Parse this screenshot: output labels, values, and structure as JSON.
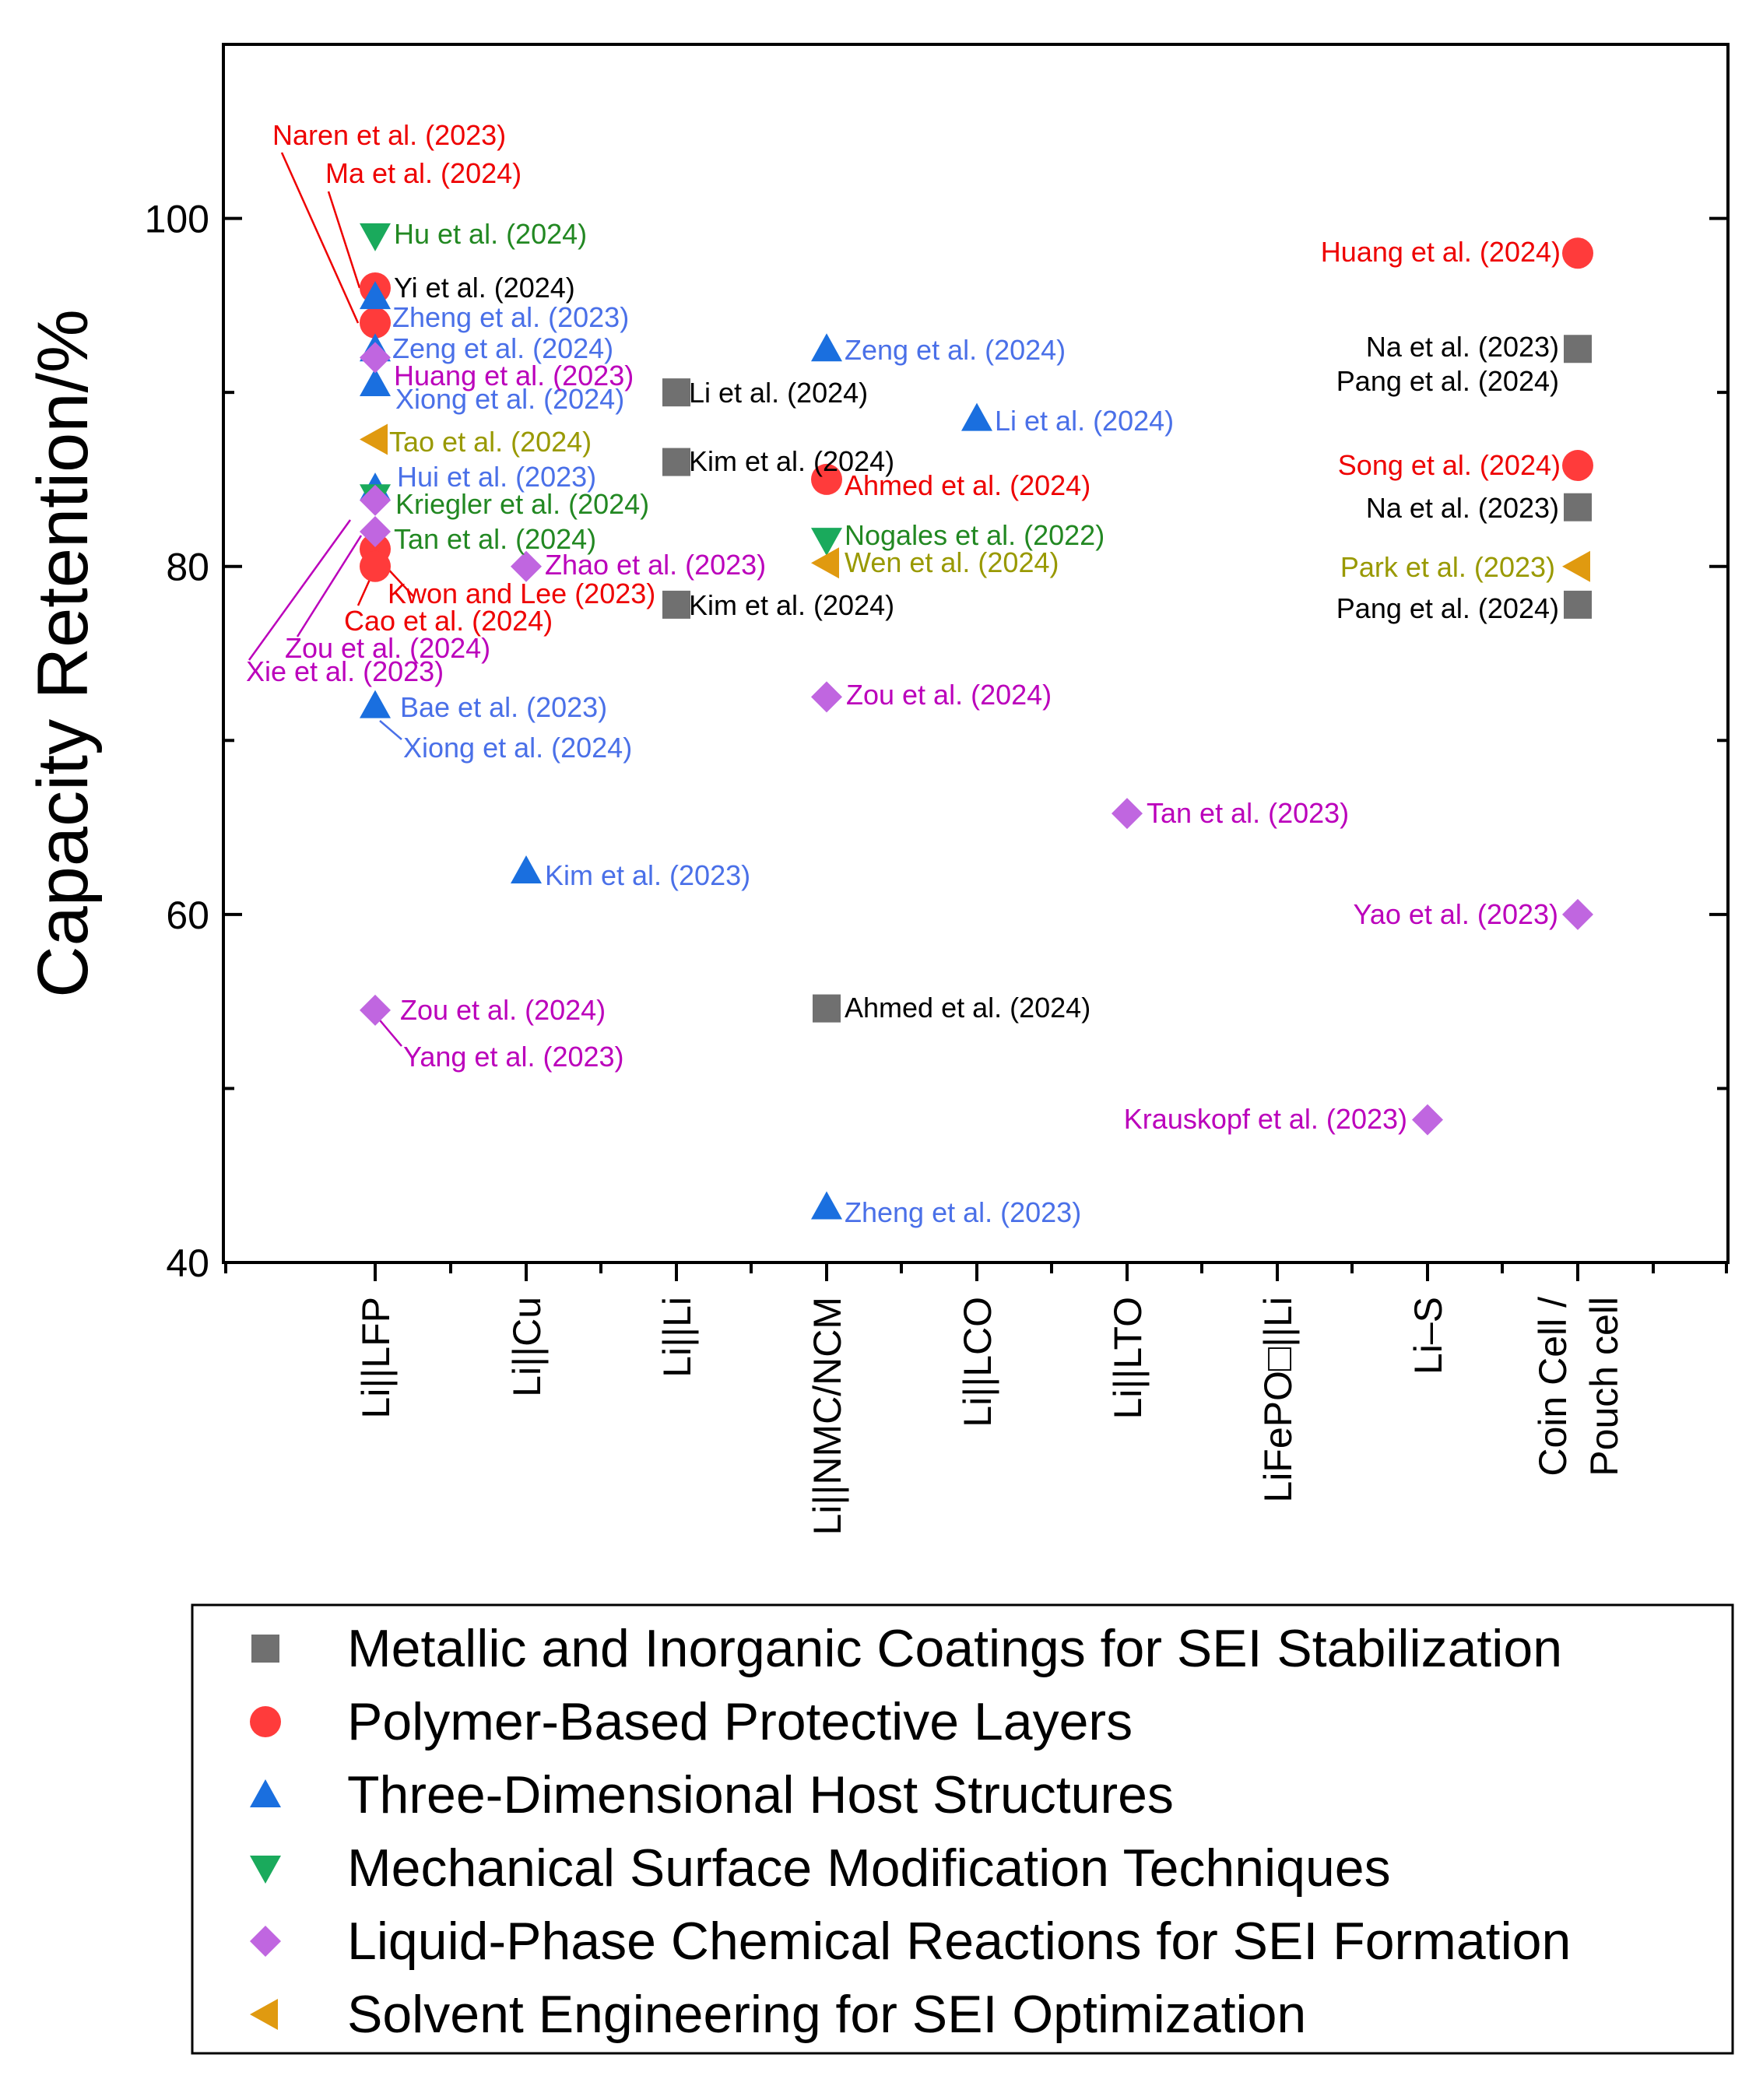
{
  "chart_data": {
    "type": "scatter",
    "title": "",
    "xlabel": "",
    "ylabel": "Capacity Retention/%",
    "ylim": [
      40,
      110
    ],
    "yticks": [
      40,
      60,
      80,
      100
    ],
    "grid": false,
    "categories": [
      "Li||LFP",
      "Li||Cu",
      "Li||Li",
      "Li||NMC/NCM",
      "Li||LCO",
      "Li||LTO",
      "LiFePO□||Li",
      "Li–S",
      "Coin Cell /\nPouch cell"
    ],
    "category_lines": [
      [
        "Li||LFP"
      ],
      [
        "Li||Cu"
      ],
      [
        "Li||Li"
      ],
      [
        "Li||NMC/NCM"
      ],
      [
        "Li||LCO"
      ],
      [
        "Li||LTO"
      ],
      [
        "LiFePO□||Li"
      ],
      [
        "Li–S"
      ],
      [
        "Coin Cell /",
        "Pouch cell"
      ]
    ],
    "legend_position": "bottom",
    "colors": {
      "metallic": "#707070",
      "polymer": "#ff3b3b",
      "host": "#1a6fdf",
      "mechanical": "#1aaa5c",
      "liquid": "#c066e0",
      "solvent": "#e09a10",
      "text_red": "#ee0000",
      "text_blue": "#4a70e8",
      "text_magenta": "#bb00bb",
      "text_green": "#228822",
      "text_olive": "#999900",
      "text_black": "#000000"
    },
    "series": [
      {
        "key": "metallic",
        "name": "Metallic and Inorganic Coatings for SEI Stabilization",
        "marker": "square",
        "points": [
          {
            "x": "Li||Li",
            "y": 90,
            "label": "Li et al. (2024)"
          },
          {
            "x": "Li||Li",
            "y": 86,
            "label": "Kim et al. (2024)"
          },
          {
            "x": "Li||Li",
            "y": 77.8,
            "label": "Kim et al. (2024)"
          },
          {
            "x": "Li||NMC/NCM",
            "y": 54.6,
            "label": "Ahmed et al. (2024)"
          },
          {
            "x": "Coin Cell /\nPouch cell",
            "y": 92.5,
            "label": "Na et al. (2023)"
          },
          {
            "x": "Coin Cell /\nPouch cell",
            "y": 92.5,
            "label": "Pang et al. (2024)"
          },
          {
            "x": "Coin Cell /\nPouch cell",
            "y": 83.4,
            "label": "Na et al. (2023)"
          },
          {
            "x": "Coin Cell /\nPouch cell",
            "y": 77.8,
            "label": "Pang et al. (2024)"
          }
        ]
      },
      {
        "key": "polymer",
        "name": "Polymer-Based Protective Layers",
        "marker": "circle",
        "points": [
          {
            "x": "Li||LFP",
            "y": 96,
            "label": "Naren et al. (2023)"
          },
          {
            "x": "Li||LFP",
            "y": 94,
            "label": "Ma et al. (2024)"
          },
          {
            "x": "Li||LFP",
            "y": 81,
            "label": "Kwon and Lee (2023)"
          },
          {
            "x": "Li||LFP",
            "y": 80,
            "label": "Cao et al. (2024)"
          },
          {
            "x": "Li||NMC/NCM",
            "y": 85,
            "label": "Ahmed et al. (2024)"
          },
          {
            "x": "Coin Cell /\nPouch cell",
            "y": 98,
            "label": "Huang et al. (2024)"
          },
          {
            "x": "Coin Cell /\nPouch cell",
            "y": 85.8,
            "label": "Song et al. (2024)"
          }
        ]
      },
      {
        "key": "host",
        "name": "Three-Dimensional Host Structures",
        "marker": "triangle-up",
        "points": [
          {
            "x": "Li||LFP",
            "y": 95.5,
            "label": "Yi et al. (2024)"
          },
          {
            "x": "Li||LFP",
            "y": 92.5,
            "label": "Zheng et al. (2023)"
          },
          {
            "x": "Li||LFP",
            "y": 90.5,
            "label": "Xiong et al. (2024)"
          },
          {
            "x": "Li||LFP",
            "y": 84.5,
            "label": "Hui et al. (2023)"
          },
          {
            "x": "Li||LFP",
            "y": 72,
            "label": "Bae et al. (2023)"
          },
          {
            "x": "Li||LFP",
            "y": 72,
            "label": "Xiong et al. (2024)"
          },
          {
            "x": "Li||Cu",
            "y": 62.5,
            "label": "Kim et al. (2023)"
          },
          {
            "x": "Li||NMC/NCM",
            "y": 92.5,
            "label": "Zeng et al. (2024)"
          },
          {
            "x": "Li||NMC/NCM",
            "y": 43.2,
            "label": "Zheng et al. (2023)"
          },
          {
            "x": "Li||LCO",
            "y": 88.5,
            "label": "Li et al. (2024)"
          }
        ]
      },
      {
        "key": "mechanical",
        "name": "Mechanical Surface Modification Techniques",
        "marker": "triangle-down",
        "points": [
          {
            "x": "Li||LFP",
            "y": 99,
            "label": "Hu et al. (2024)"
          },
          {
            "x": "Li||LFP",
            "y": 84,
            "label": "Kriegler et al. (2024)"
          },
          {
            "x": "Li||NMC/NCM",
            "y": 81.5,
            "label": "Nogales et al. (2022)"
          }
        ]
      },
      {
        "key": "liquid",
        "name": "Liquid-Phase Chemical Reactions for SEI Formation",
        "marker": "diamond",
        "points": [
          {
            "x": "Li||LFP",
            "y": 92,
            "label": "Zeng et al. (2024)"
          },
          {
            "x": "Li||LFP",
            "y": 92,
            "label": "Huang et al. (2023)"
          },
          {
            "x": "Li||LFP",
            "y": 83.8,
            "label": "Zou et al. (2024)"
          },
          {
            "x": "Li||LFP",
            "y": 82,
            "label": "Tan et al. (2024)"
          },
          {
            "x": "Li||LFP",
            "y": 82,
            "label": "Xie et al. (2023)"
          },
          {
            "x": "Li||LFP",
            "y": 54.5,
            "label": "Zou et al. (2024)"
          },
          {
            "x": "Li||LFP",
            "y": 54.5,
            "label": "Yang et al. (2023)"
          },
          {
            "x": "Li||Cu",
            "y": 80,
            "label": "Zhao et al. (2023)"
          },
          {
            "x": "Li||NMC/NCM",
            "y": 72.5,
            "label": "Zou et al. (2024)"
          },
          {
            "x": "Li||LTO",
            "y": 65.8,
            "label": "Tan et al. (2023)"
          },
          {
            "x": "Li–S",
            "y": 48.2,
            "label": "Krauskopf et al. (2023)"
          },
          {
            "x": "Coin Cell /\nPouch cell",
            "y": 60,
            "label": "Yao et al. (2023)"
          }
        ]
      },
      {
        "key": "solvent",
        "name": "Solvent Engineering for SEI Optimization",
        "marker": "triangle-left",
        "points": [
          {
            "x": "Li||LFP",
            "y": 87.3,
            "label": "Tao et al. (2024)"
          },
          {
            "x": "Li||NMC/NCM",
            "y": 80.2,
            "label": "Wen et al. (2024)"
          },
          {
            "x": "Coin Cell /\nPouch cell",
            "y": 80,
            "label": "Park et al. (2023)"
          }
        ]
      }
    ]
  }
}
